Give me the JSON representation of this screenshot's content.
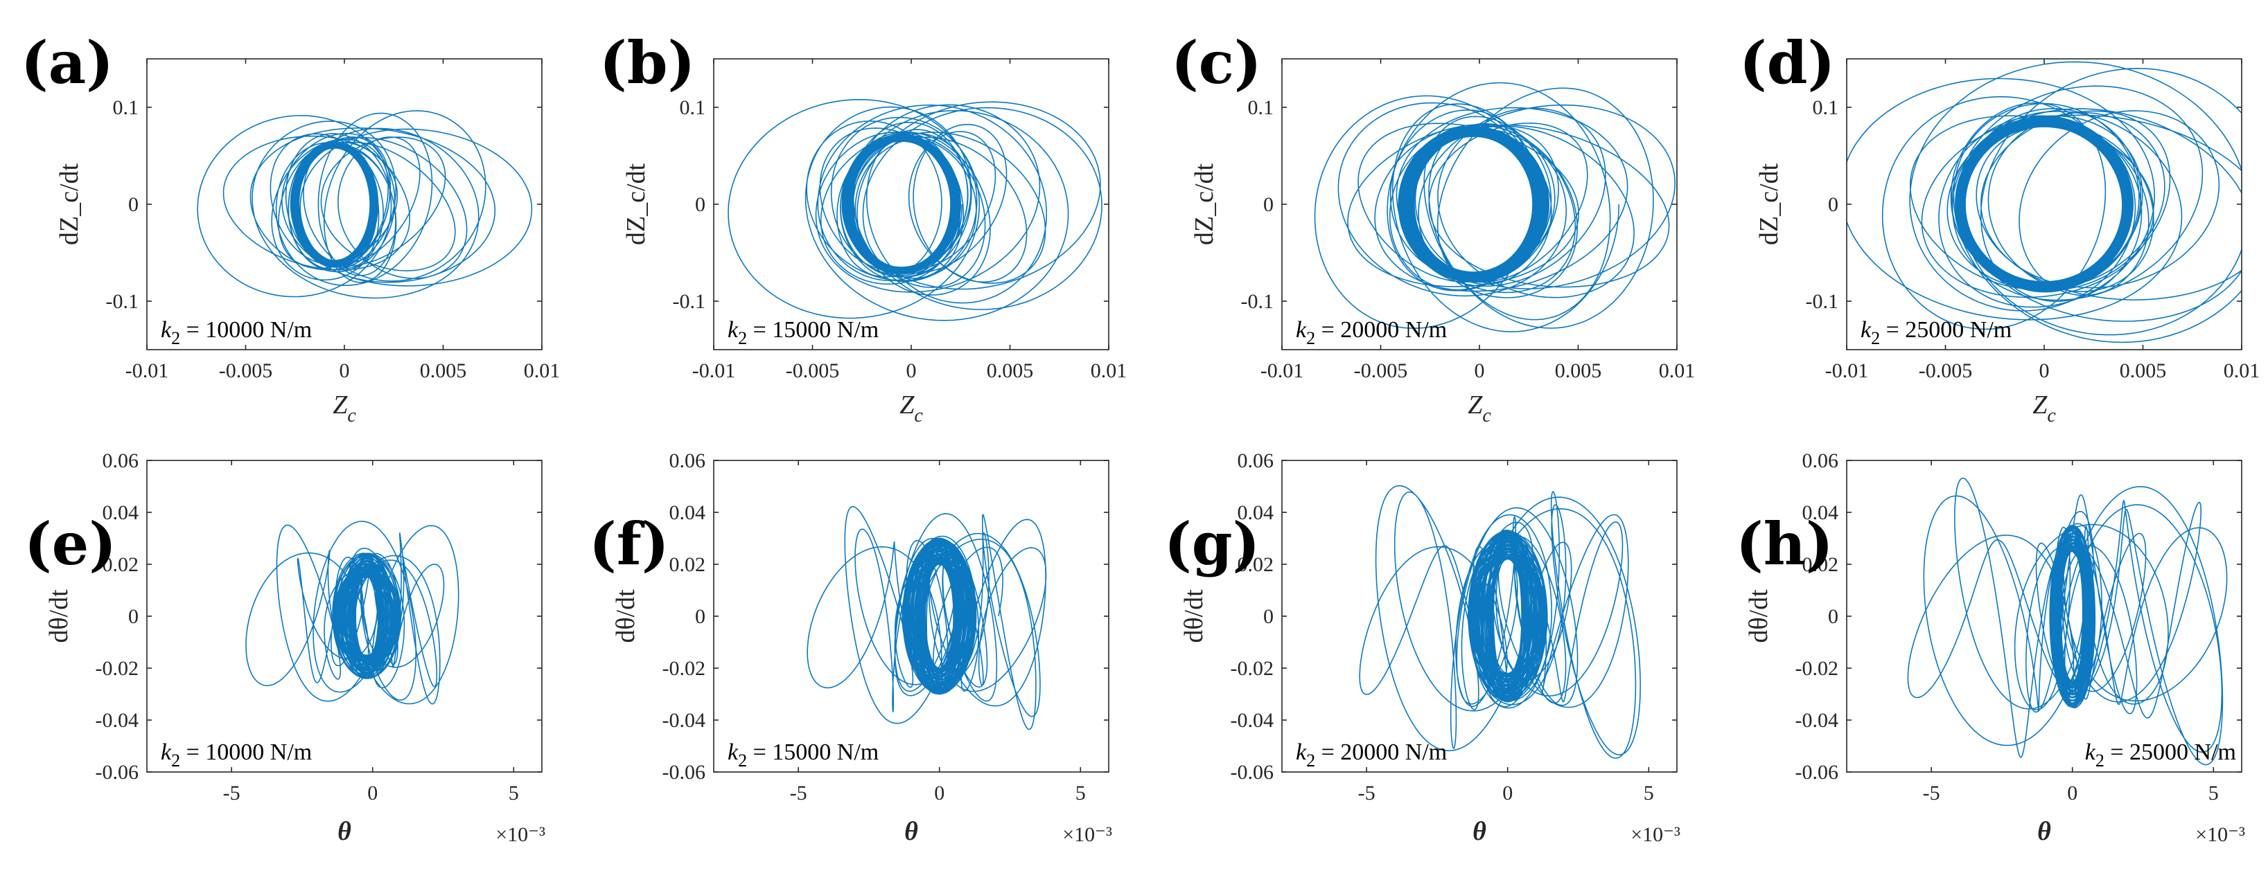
{
  "figure": {
    "colors": {
      "trajectory": "#0072BD",
      "axes": "#262626"
    }
  },
  "chart_data": [
    {
      "panel": "(a)",
      "type": "line",
      "row": "top",
      "xlabel_main": "Z",
      "xlabel_sub": "c",
      "ylabel": "dZ_c/dt",
      "xlim": [
        -0.01,
        0.01
      ],
      "ylim": [
        -0.15,
        0.15
      ],
      "xticks": [
        -0.01,
        -0.005,
        0,
        0.005,
        0.01
      ],
      "xtick_labels": [
        "-0.01",
        "-0.005",
        "0",
        "0.005",
        "0.01"
      ],
      "yticks": [
        -0.1,
        0,
        0.1
      ],
      "ytick_labels": [
        "-0.1",
        "0",
        "0.1"
      ],
      "annotation": {
        "var": "k",
        "sub": "2",
        "text": " = 10000 N/m",
        "position": "bottom-left"
      },
      "orbit": {
        "center": [
          -0.0005,
          0
        ],
        "amp_x_core": [
          0.0018,
          0.0022
        ],
        "amp_y_core": [
          0.058,
          0.064
        ],
        "amp_x_outer": [
          0.0035,
          0.006
        ],
        "amp_y_outer": [
          0.07,
          0.1
        ],
        "shift_outer": [
          -0.002,
          0.0045
        ]
      }
    },
    {
      "panel": "(b)",
      "type": "line",
      "row": "top",
      "xlabel_main": "Z",
      "xlabel_sub": "c",
      "ylabel": "dZ_c/dt",
      "xlim": [
        -0.01,
        0.01
      ],
      "ylim": [
        -0.15,
        0.15
      ],
      "xticks": [
        -0.01,
        -0.005,
        0,
        0.005,
        0.01
      ],
      "xtick_labels": [
        "-0.01",
        "-0.005",
        "0",
        "0.005",
        "0.01"
      ],
      "yticks": [
        -0.1,
        0,
        0.1
      ],
      "ytick_labels": [
        "-0.1",
        "0",
        "0.1"
      ],
      "annotation": {
        "var": "k",
        "sub": "2",
        "text": " = 15000 N/m",
        "position": "bottom-left"
      },
      "orbit": {
        "center": [
          -0.0005,
          0
        ],
        "amp_x_core": [
          0.0025,
          0.003
        ],
        "amp_y_core": [
          0.065,
          0.072
        ],
        "amp_x_outer": [
          0.004,
          0.0065
        ],
        "amp_y_outer": [
          0.08,
          0.12
        ],
        "shift_outer": [
          -0.0025,
          0.005
        ]
      }
    },
    {
      "panel": "(c)",
      "type": "line",
      "row": "top",
      "xlabel_main": "Z",
      "xlabel_sub": "c",
      "ylabel": "dZ_c/dt",
      "xlim": [
        -0.01,
        0.01
      ],
      "ylim": [
        -0.15,
        0.15
      ],
      "xticks": [
        -0.01,
        -0.005,
        0,
        0.005,
        0.01
      ],
      "xtick_labels": [
        "-0.01",
        "-0.005",
        "0",
        "0.005",
        "0.01"
      ],
      "yticks": [
        -0.1,
        0,
        0.1
      ],
      "ytick_labels": [
        "-0.1",
        "0",
        "0.1"
      ],
      "annotation": {
        "var": "k",
        "sub": "2",
        "text": " = 20000 N/m",
        "position": "bottom-left"
      },
      "orbit": {
        "center": [
          -0.0003,
          0
        ],
        "amp_x_core": [
          0.003,
          0.0038
        ],
        "amp_y_core": [
          0.07,
          0.08
        ],
        "amp_x_outer": [
          0.0045,
          0.0075
        ],
        "amp_y_outer": [
          0.085,
          0.135
        ],
        "shift_outer": [
          -0.003,
          0.005
        ]
      }
    },
    {
      "panel": "(d)",
      "type": "line",
      "row": "top",
      "xlabel_main": "Z",
      "xlabel_sub": "c",
      "ylabel": "dZ_c/dt",
      "xlim": [
        -0.01,
        0.01
      ],
      "ylim": [
        -0.15,
        0.15
      ],
      "xticks": [
        -0.01,
        -0.005,
        0,
        0.005,
        0.01
      ],
      "xtick_labels": [
        "-0.01",
        "-0.005",
        "0",
        "0.005",
        "0.01"
      ],
      "yticks": [
        -0.1,
        0,
        0.1
      ],
      "ytick_labels": [
        "-0.1",
        "0",
        "0.1"
      ],
      "annotation": {
        "var": "k",
        "sub": "2",
        "text": " = 25000 N/m",
        "position": "bottom-left"
      },
      "orbit": {
        "center": [
          0.0,
          0
        ],
        "amp_x_core": [
          0.004,
          0.0045
        ],
        "amp_y_core": [
          0.08,
          0.09
        ],
        "amp_x_outer": [
          0.005,
          0.009
        ],
        "amp_y_outer": [
          0.09,
          0.15
        ],
        "shift_outer": [
          -0.003,
          0.005
        ]
      }
    },
    {
      "panel": "(e)",
      "type": "line",
      "row": "bottom",
      "xlabel_main": "θ",
      "ylabel": "dθ/dt",
      "xexponent": "×10⁻³",
      "xlim": [
        -8,
        6
      ],
      "ylim": [
        -0.06,
        0.06
      ],
      "xticks": [
        -5,
        0,
        5
      ],
      "xtick_labels": [
        "-5",
        "0",
        "5"
      ],
      "yticks": [
        -0.06,
        -0.04,
        -0.02,
        0,
        0.02,
        0.04,
        0.06
      ],
      "ytick_labels": [
        "-0.06",
        "-0.04",
        "-0.02",
        "0",
        "0.02",
        "0.04",
        "0.06"
      ],
      "annotation": {
        "var": "k",
        "sub": "2",
        "text": " = 10000 N/m",
        "position": "bottom-left"
      },
      "orbit": {
        "center": [
          -0.2,
          0
        ],
        "amp_x_core": [
          0.4,
          1.2
        ],
        "amp_y_core": [
          0.015,
          0.024
        ],
        "amp_x_outer": [
          0.4,
          1.0
        ],
        "amp_y_outer": [
          0.02,
          0.038
        ],
        "shift_outer": [
          -3.6,
          2.6
        ]
      }
    },
    {
      "panel": "(f)",
      "type": "line",
      "row": "bottom",
      "xlabel_main": "θ",
      "ylabel": "dθ/dt",
      "xexponent": "×10⁻³",
      "xlim": [
        -8,
        6
      ],
      "ylim": [
        -0.06,
        0.06
      ],
      "xticks": [
        -5,
        0,
        5
      ],
      "xtick_labels": [
        "-5",
        "0",
        "5"
      ],
      "yticks": [
        -0.06,
        -0.04,
        -0.02,
        0,
        0.02,
        0.04,
        0.06
      ],
      "ytick_labels": [
        "-0.06",
        "-0.04",
        "-0.02",
        "0",
        "0.02",
        "0.04",
        "0.06"
      ],
      "annotation": {
        "var": "k",
        "sub": "2",
        "text": " = 15000 N/m",
        "position": "bottom-left"
      },
      "orbit": {
        "center": [
          0.0,
          0
        ],
        "amp_x_core": [
          0.5,
          1.3
        ],
        "amp_y_core": [
          0.02,
          0.03
        ],
        "amp_x_outer": [
          0.5,
          1.2
        ],
        "amp_y_outer": [
          0.025,
          0.045
        ],
        "shift_outer": [
          -4.0,
          3.5
        ]
      }
    },
    {
      "panel": "(g)",
      "type": "line",
      "row": "bottom",
      "xlabel_main": "θ",
      "ylabel": "dθ/dt",
      "xexponent": "×10⁻³",
      "xlim": [
        -8,
        6
      ],
      "ylim": [
        -0.06,
        0.06
      ],
      "xticks": [
        -5,
        0,
        5
      ],
      "xtick_labels": [
        "-5",
        "0",
        "5"
      ],
      "yticks": [
        -0.06,
        -0.04,
        -0.02,
        0,
        0.02,
        0.04,
        0.06
      ],
      "ytick_labels": [
        "-0.06",
        "-0.04",
        "-0.02",
        "0",
        "0.02",
        "0.04",
        "0.06"
      ],
      "annotation": {
        "var": "k",
        "sub": "2",
        "text": " = 20000 N/m",
        "position": "bottom-left"
      },
      "orbit": {
        "center": [
          0.0,
          0
        ],
        "amp_x_core": [
          0.5,
          1.4
        ],
        "amp_y_core": [
          0.022,
          0.033
        ],
        "amp_x_outer": [
          0.6,
          1.3
        ],
        "amp_y_outer": [
          0.03,
          0.056
        ],
        "shift_outer": [
          -5.0,
          4.2
        ]
      }
    },
    {
      "panel": "(h)",
      "type": "line",
      "row": "bottom",
      "xlabel_main": "θ",
      "ylabel": "dθ/dt",
      "xexponent": "×10⁻³",
      "xlim": [
        -8,
        6
      ],
      "ylim": [
        -0.06,
        0.06
      ],
      "xticks": [
        -5,
        0,
        5
      ],
      "xtick_labels": [
        "-5",
        "0",
        "5"
      ],
      "yticks": [
        -0.06,
        -0.04,
        -0.02,
        0,
        0.02,
        0.04,
        0.06
      ],
      "ytick_labels": [
        "-0.06",
        "-0.04",
        "-0.02",
        "0",
        "0.02",
        "0.04",
        "0.06"
      ],
      "annotation": {
        "var": "k",
        "sub": "2",
        "text": " = 25000 N/m",
        "position": "bottom-right"
      },
      "orbit": {
        "center": [
          0.0,
          0
        ],
        "amp_x_core": [
          0.4,
          0.8
        ],
        "amp_y_core": [
          0.025,
          0.035
        ],
        "amp_x_outer": [
          0.7,
          1.4
        ],
        "amp_y_outer": [
          0.03,
          0.058
        ],
        "shift_outer": [
          -5.5,
          5.0
        ]
      }
    }
  ]
}
